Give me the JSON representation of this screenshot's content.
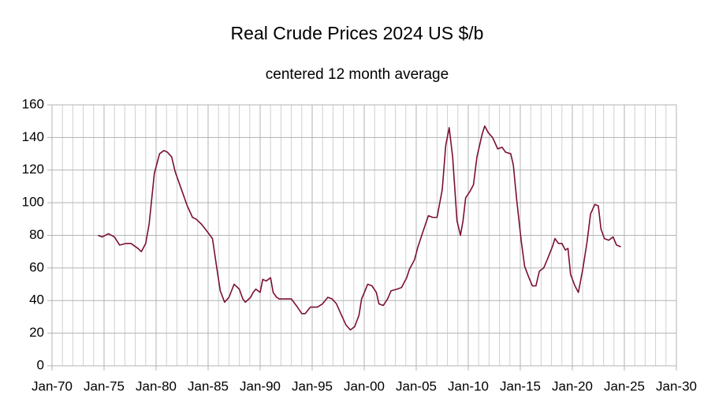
{
  "chart_data": {
    "type": "line",
    "title": "Real Crude Prices 2024 US $/b",
    "subtitle": "centered 12 month average",
    "color": "#7b1030",
    "x": [
      "Jun-74",
      "Nov-74",
      "Jun-75",
      "Jan-76",
      "Jul-76",
      "Feb-77",
      "Aug-77",
      "Apr-78",
      "Aug-78",
      "Jan-79",
      "May-79",
      "Nov-79",
      "May-80",
      "Oct-80",
      "Feb-81",
      "Jul-81",
      "Nov-81",
      "May-82",
      "Jan-83",
      "Jul-83",
      "Nov-83",
      "May-84",
      "Nov-84",
      "Jun-85",
      "Nov-85",
      "Mar-86",
      "Aug-86",
      "Jan-87",
      "Jul-87",
      "Jan-88",
      "May-88",
      "Aug-88",
      "Feb-89",
      "May-89",
      "Aug-89",
      "Jan-90",
      "Apr-90",
      "Aug-90",
      "Jan-91",
      "Apr-91",
      "Aug-91",
      "Nov-91",
      "May-92",
      "Jan-93",
      "Aug-93",
      "Jan-94",
      "May-94",
      "Nov-94",
      "Jul-95",
      "Jan-96",
      "Jul-96",
      "Dec-96",
      "May-97",
      "Oct-97",
      "Apr-98",
      "Sep-98",
      "Feb-99",
      "Jul-99",
      "Oct-99",
      "Feb-00",
      "May-00",
      "Oct-00",
      "Mar-01",
      "Jun-01",
      "Nov-01",
      "Apr-02",
      "Aug-02",
      "Mar-03",
      "Aug-03",
      "Feb-04",
      "May-04",
      "Nov-04",
      "Mar-05",
      "Aug-05",
      "Mar-06",
      "Aug-06",
      "Jan-07",
      "Jul-07",
      "Nov-07",
      "Mar-08",
      "Jul-08",
      "Dec-08",
      "Apr-09",
      "Jul-09",
      "Oct-09",
      "Mar-10",
      "Jul-10",
      "Nov-10",
      "May-11",
      "Aug-11",
      "Dec-11",
      "May-12",
      "Nov-12",
      "Apr-13",
      "Aug-13",
      "Feb-14",
      "May-14",
      "Sep-14",
      "Feb-15",
      "Jun-15",
      "Nov-15",
      "Mar-16",
      "Jul-16",
      "Nov-16",
      "Apr-17",
      "Aug-17",
      "Feb-18",
      "May-18",
      "Sep-18",
      "Jan-19",
      "May-19",
      "Aug-19",
      "Nov-19",
      "Apr-20",
      "Aug-20",
      "Jan-21",
      "Jun-21",
      "Oct-21",
      "Mar-22",
      "Jul-22",
      "Oct-22",
      "Feb-23",
      "Jul-23",
      "Dec-23",
      "Apr-24",
      "Sep-24"
    ],
    "values": [
      80,
      79,
      81,
      79,
      74,
      75,
      75,
      72,
      70,
      75,
      87,
      118,
      130,
      132,
      131,
      128,
      119,
      110,
      98,
      91,
      90,
      87,
      83,
      78,
      60,
      46,
      39,
      42,
      50,
      47,
      41,
      39,
      42,
      45,
      47,
      45,
      53,
      52,
      54,
      45,
      42,
      41,
      41,
      41,
      36,
      32,
      32,
      36,
      36,
      38,
      42,
      41,
      38,
      32,
      25,
      22,
      24,
      31,
      41,
      46,
      50,
      49,
      45,
      38,
      37,
      41,
      46,
      47,
      48,
      54,
      59,
      65,
      73,
      81,
      92,
      91,
      91,
      108,
      135,
      146,
      128,
      89,
      80,
      89,
      103,
      107,
      111,
      128,
      142,
      147,
      143,
      140,
      133,
      134,
      131,
      130,
      123,
      101,
      77,
      61,
      54,
      49,
      49,
      58,
      60,
      65,
      73,
      78,
      75,
      75,
      71,
      72,
      56,
      49,
      45,
      59,
      76,
      93,
      99,
      98,
      84,
      78,
      77,
      79,
      74,
      73
    ],
    "xlim": [
      "Jan-70",
      "Jan-30"
    ],
    "xticks": [
      "Jan-70",
      "Jan-75",
      "Jan-80",
      "Jan-85",
      "Jan-90",
      "Jan-95",
      "Jan-00",
      "Jan-05",
      "Jan-10",
      "Jan-15",
      "Jan-20",
      "Jan-25",
      "Jan-30"
    ],
    "ylim": [
      0,
      160
    ],
    "yticks": [
      0,
      20,
      40,
      60,
      80,
      100,
      120,
      140,
      160
    ],
    "grid": true,
    "minor_grid": true
  }
}
